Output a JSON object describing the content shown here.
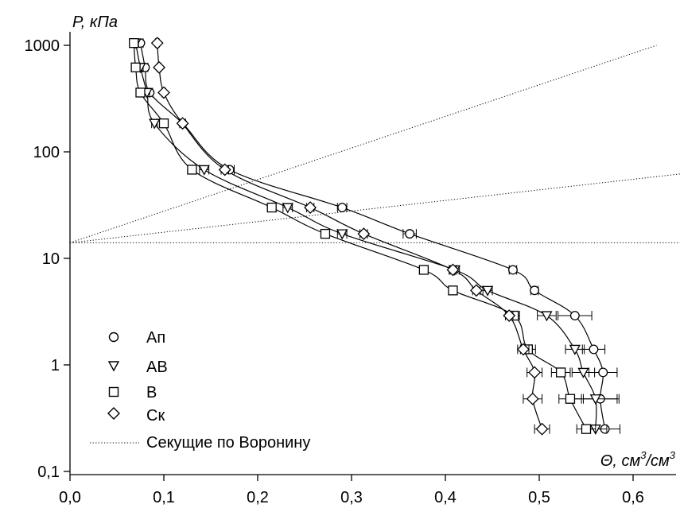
{
  "chart_data": {
    "type": "scatter",
    "title": "",
    "ylabel": "P, кПа",
    "xlabel": "Θ, см³/см³",
    "xlabel_parts": {
      "sym": "Θ",
      "unit1": ", см",
      "sup1": "3",
      "slash": "/см",
      "sup2": "3"
    },
    "ylabel_parts": {
      "sym": "P",
      "unit": ", кПа"
    },
    "x_scale": "linear",
    "y_scale": "log",
    "xlim": [
      0,
      0.65
    ],
    "ylim": [
      0.1,
      1000
    ],
    "x_ticks": [
      "0,0",
      "0,1",
      "0,2",
      "0,3",
      "0,4",
      "0,5",
      "0,6"
    ],
    "x_tick_values": [
      0,
      0.1,
      0.2,
      0.3,
      0.4,
      0.5,
      0.6
    ],
    "y_ticks": [
      "0,1",
      "1",
      "10",
      "100",
      "1000"
    ],
    "y_tick_values": [
      0.1,
      1,
      10,
      100,
      1000
    ],
    "grid": false,
    "legend_position": "bottom-left",
    "pressures": [
      1050,
      620,
      360,
      185,
      68,
      30,
      17,
      7.8,
      5,
      2.9,
      1.4,
      0.85,
      0.48,
      0.25
    ],
    "series": [
      {
        "name": "Ап",
        "marker": "circle",
        "x": [
          0.075,
          0.08,
          0.085,
          0.12,
          0.17,
          0.29,
          0.362,
          0.472,
          0.495,
          0.538,
          0.558,
          0.568,
          0.565,
          0.57
        ],
        "err": [
          0.003,
          0.003,
          0.003,
          0.003,
          0.005,
          0.005,
          0.007,
          0.004,
          0.004,
          0.018,
          0.012,
          0.015,
          0.018,
          0.016
        ]
      },
      {
        "name": "АВ",
        "marker": "triangle-down",
        "x": [
          0.07,
          0.075,
          0.082,
          0.09,
          0.143,
          0.232,
          0.29,
          0.41,
          0.445,
          0.508,
          0.538,
          0.547,
          0.56,
          0.56
        ],
        "err": [
          0.003,
          0.003,
          0.003,
          0.003,
          0.005,
          0.005,
          0.005,
          0.005,
          0.005,
          0.01,
          0.01,
          0.012,
          0.025,
          0.012
        ]
      },
      {
        "name": "В",
        "marker": "square",
        "x": [
          0.068,
          0.07,
          0.075,
          0.1,
          0.13,
          0.215,
          0.272,
          0.377,
          0.408,
          0.473,
          0.488,
          0.523,
          0.533,
          0.55
        ],
        "err": [
          0.002,
          0.002,
          0.002,
          0.003,
          0.003,
          0.004,
          0.004,
          0.003,
          0.003,
          0.006,
          0.008,
          0.01,
          0.012,
          0.01
        ]
      },
      {
        "name": "Ск",
        "marker": "diamond",
        "x": [
          0.093,
          0.095,
          0.1,
          0.12,
          0.165,
          0.256,
          0.313,
          0.408,
          0.433,
          0.468,
          0.483,
          0.495,
          0.493,
          0.503
        ],
        "err": [
          0.002,
          0.002,
          0.002,
          0.003,
          0.004,
          0.004,
          0.004,
          0.004,
          0.004,
          0.004,
          0.006,
          0.008,
          0.01,
          0.008
        ]
      }
    ],
    "secants": {
      "name": "Секущие по Воронину",
      "style": "dotted",
      "origin": [
        0,
        14
      ],
      "lines": [
        {
          "to": [
            0.625,
            1000
          ]
        },
        {
          "to": [
            0.65,
            62
          ]
        },
        {
          "to": [
            0.65,
            14
          ]
        }
      ]
    },
    "legend": [
      {
        "marker": "circle",
        "label": "Ап"
      },
      {
        "marker": "triangle-down",
        "label": "АВ"
      },
      {
        "marker": "square",
        "label": "В"
      },
      {
        "marker": "diamond",
        "label": "Ск"
      },
      {
        "marker": "dotted-line",
        "label": "Секущие по Воронину"
      }
    ]
  }
}
